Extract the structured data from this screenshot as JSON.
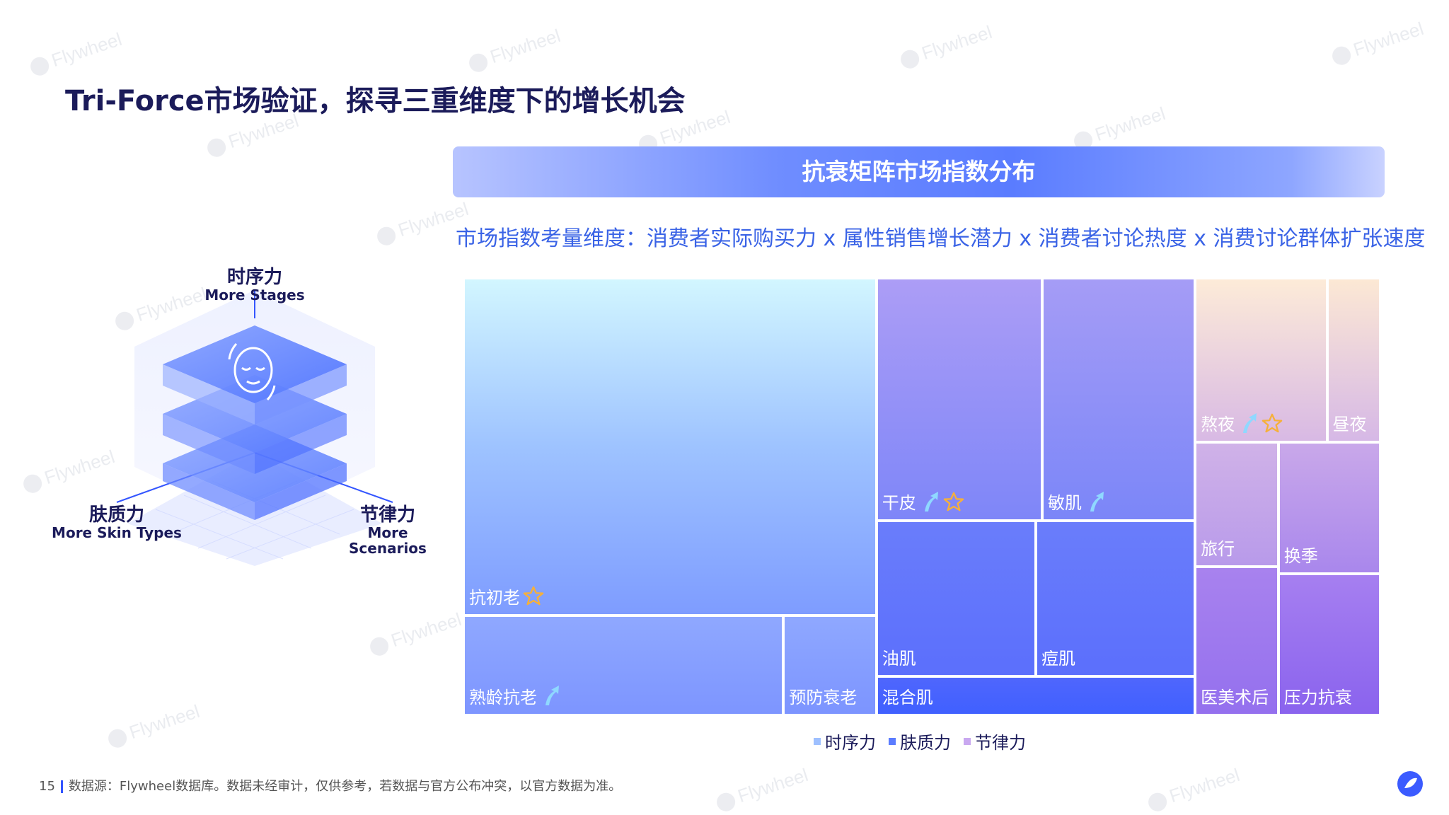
{
  "page_title": "Tri-Force市场验证，探寻三重维度下的增长机会",
  "chart_header": "抗衰矩阵市场指数分布",
  "dimension_label": "市场指数考量维度：消费者实际购买力 x 属性销售增长潜力 x 消费者讨论热度 x 消费讨论群体扩张速度",
  "diagram": {
    "top": {
      "zh": "时序力",
      "en": "More Stages"
    },
    "left": {
      "zh": "肤质力",
      "en": "More Skin Types"
    },
    "right": {
      "zh": "节律力",
      "en": "More Scenarios"
    }
  },
  "legend": [
    {
      "label": "时序力",
      "color": "#9ec0ff"
    },
    {
      "label": "肤质力",
      "color": "#5b7cff"
    },
    {
      "label": "节律力",
      "color": "#c9a8f0"
    }
  ],
  "footer": {
    "page_number": "15",
    "source": "数据源：Flywheel数据库。数据未经审计，仅供参考，若数据与官方公布冲突，以官方数据为准。"
  },
  "watermark": "Flywheel",
  "chart_data": {
    "type": "treemap",
    "title": "抗衰矩阵市场指数分布",
    "groups": [
      {
        "name": "时序力",
        "items": [
          {
            "label": "抗初老",
            "value": 270,
            "rising": false,
            "star": true
          },
          {
            "label": "熟龄抗老",
            "value": 62,
            "rising": true,
            "star": false
          },
          {
            "label": "预防衰老",
            "value": 18,
            "rising": false,
            "star": false
          }
        ]
      },
      {
        "name": "肤质力",
        "items": [
          {
            "label": "干皮",
            "value": 78,
            "rising": true,
            "star": true
          },
          {
            "label": "敏肌",
            "value": 72,
            "rising": true,
            "star": false
          },
          {
            "label": "油肌",
            "value": 48,
            "rising": false,
            "star": false
          },
          {
            "label": "痘肌",
            "value": 48,
            "rising": false,
            "star": false
          },
          {
            "label": "混合肌",
            "value": 24,
            "rising": false,
            "star": false
          }
        ]
      },
      {
        "name": "节律力",
        "items": [
          {
            "label": "熬夜",
            "value": 42,
            "rising": true,
            "star": true
          },
          {
            "label": "昼夜",
            "value": 17,
            "rising": false,
            "star": false
          },
          {
            "label": "旅行",
            "value": 20,
            "rising": false,
            "star": false
          },
          {
            "label": "换季",
            "value": 26,
            "rising": false,
            "star": false
          },
          {
            "label": "医美术后",
            "value": 24,
            "rising": false,
            "star": false
          },
          {
            "label": "压力抗衰",
            "value": 28,
            "rising": false,
            "star": false
          }
        ]
      }
    ]
  }
}
